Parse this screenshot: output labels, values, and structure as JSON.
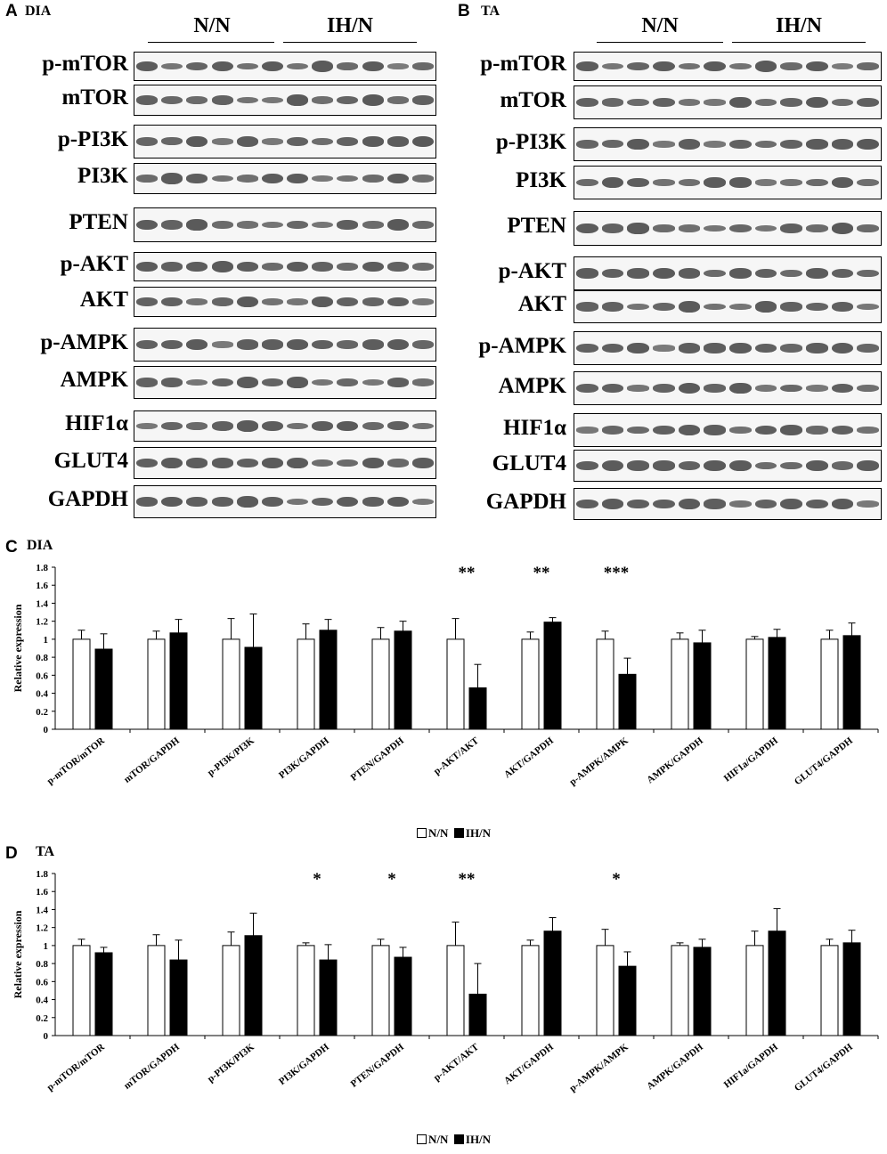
{
  "panels": {
    "A": {
      "letter": "A",
      "tissue": "DIA"
    },
    "B": {
      "letter": "B",
      "tissue": "TA"
    },
    "C": {
      "letter": "C",
      "tissue": "DIA"
    },
    "D": {
      "letter": "D",
      "tissue": "TA"
    }
  },
  "groups": {
    "control": "N/N",
    "treated": "IH/N"
  },
  "blot_labels": [
    "p-mTOR",
    "mTOR",
    "p-PI3K",
    "PI3K",
    "PTEN",
    "p-AKT",
    "AKT",
    "p-AMPK",
    "AMPK",
    "HIF1α",
    "GLUT4",
    "GAPDH"
  ],
  "legend": {
    "control": "N/N",
    "treated": "IH/N"
  },
  "colors": {
    "control_fill": "#ffffff",
    "treated_fill": "#000000",
    "axis": "#000000"
  },
  "chart_data": [
    {
      "type": "bar",
      "panel": "C",
      "title": "DIA",
      "ylabel": "Relative expression",
      "ylim": [
        0,
        1.8
      ],
      "yticks": [
        "0",
        "0.2",
        "0.4",
        "0.6",
        "0.8",
        "1",
        "1.2",
        "1.4",
        "1.6",
        "1.8"
      ],
      "categories": [
        "p-mTOR/mTOR",
        "mTOR/GAPDH",
        "p-PI3K/PI3K",
        "PI3K/GAPDH",
        "PTEN/GAPDH",
        "p-AKT/AKT",
        "AKT/GAPDH",
        "p-AMPK/AMPK",
        "AMPK/GAPDH",
        "HIF1a/GAPDH",
        "GLUT4/GAPDH"
      ],
      "series": [
        {
          "name": "N/N",
          "values": [
            1.0,
            1.0,
            1.0,
            1.0,
            1.0,
            1.0,
            1.0,
            1.0,
            1.0,
            1.0,
            1.0
          ],
          "errors": [
            0.1,
            0.09,
            0.23,
            0.17,
            0.13,
            0.23,
            0.08,
            0.09,
            0.07,
            0.03,
            0.1
          ]
        },
        {
          "name": "IH/N",
          "values": [
            0.89,
            1.07,
            0.91,
            1.1,
            1.09,
            0.46,
            1.19,
            0.61,
            0.96,
            1.02,
            1.04
          ],
          "errors": [
            0.17,
            0.15,
            0.37,
            0.12,
            0.11,
            0.26,
            0.05,
            0.18,
            0.14,
            0.09,
            0.14
          ]
        }
      ],
      "significance": [
        "",
        "",
        "",
        "",
        "",
        "**",
        "**",
        "***",
        "",
        "",
        ""
      ]
    },
    {
      "type": "bar",
      "panel": "D",
      "title": "TA",
      "ylabel": "Relative expression",
      "ylim": [
        0,
        1.8
      ],
      "yticks": [
        "0",
        "0.2",
        "0.4",
        "0.6",
        "0.8",
        "1",
        "1.2",
        "1.4",
        "1.6",
        "1.8"
      ],
      "categories": [
        "p-mTOR/mTOR",
        "mTOR/GAPDH",
        "p-PI3K/PI3K",
        "PI3K/GAPDH",
        "PTEN/GAPDH",
        "p-AKT/AKT",
        "AKT/GAPDH",
        "p-AMPK/AMPK",
        "AMPK/GAPDH",
        "HIF1a/GAPDH",
        "GLUT4/GAPDH"
      ],
      "series": [
        {
          "name": "N/N",
          "values": [
            1.0,
            1.0,
            1.0,
            1.0,
            1.0,
            1.0,
            1.0,
            1.0,
            1.0,
            1.0,
            1.0
          ],
          "errors": [
            0.07,
            0.12,
            0.15,
            0.03,
            0.07,
            0.26,
            0.06,
            0.18,
            0.03,
            0.16,
            0.07
          ]
        },
        {
          "name": "IH/N",
          "values": [
            0.92,
            0.84,
            1.11,
            0.84,
            0.87,
            0.46,
            1.16,
            0.77,
            0.98,
            1.16,
            1.03
          ],
          "errors": [
            0.06,
            0.22,
            0.25,
            0.17,
            0.11,
            0.34,
            0.15,
            0.16,
            0.09,
            0.25,
            0.14
          ]
        }
      ],
      "significance": [
        "",
        "",
        "",
        "*",
        "*",
        "**",
        "",
        "*",
        "",
        "",
        ""
      ]
    }
  ]
}
